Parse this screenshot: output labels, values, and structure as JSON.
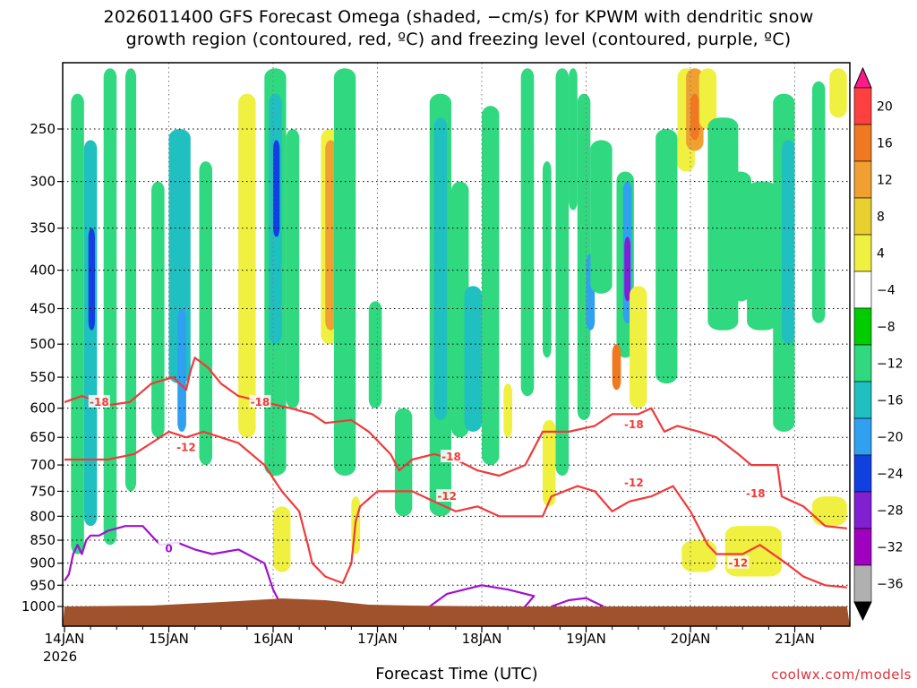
{
  "title": {
    "line1": "2026011400 GFS Forecast Omega (shaded, −cm/s) for KPWM with dendritic snow",
    "line2": "growth region (contoured, red, ºC) and freezing level (contoured, purple, ºC)"
  },
  "credit": "coolwx.com/models",
  "chart_data": {
    "type": "heatmap",
    "title": "2026011400 GFS Forecast Omega (shaded, −cm/s) for KPWM with dendritic snow growth region (contoured, red, ºC) and freezing level (contoured, purple, ºC)",
    "xlabel": "Forecast Time (UTC)",
    "ylabel": "",
    "x_ticks": [
      {
        "label": "14JAN",
        "hour": 0
      },
      {
        "label": "15JAN",
        "hour": 24
      },
      {
        "label": "16JAN",
        "hour": 48
      },
      {
        "label": "17JAN",
        "hour": 72
      },
      {
        "label": "18JAN",
        "hour": 96
      },
      {
        "label": "19JAN",
        "hour": 120
      },
      {
        "label": "20JAN",
        "hour": 144
      },
      {
        "label": "21JAN",
        "hour": 168
      }
    ],
    "x_year_label": "2026",
    "xlim_hours": [
      0,
      180
    ],
    "y_ticks": [
      250,
      300,
      350,
      400,
      450,
      500,
      550,
      600,
      650,
      700,
      750,
      800,
      850,
      900,
      950,
      1000
    ],
    "ylim": [
      200,
      1000
    ],
    "grid": true,
    "colorbar": {
      "levels": [
        20,
        16,
        12,
        8,
        4,
        -4,
        -8,
        -12,
        -16,
        -20,
        -24,
        -28,
        -32,
        -36
      ],
      "colors": [
        "#ff1a8c",
        "#ff4040",
        "#f07820",
        "#f0a030",
        "#e8d030",
        "#f0f040",
        "#ffffff",
        "#00cc00",
        "#30d880",
        "#20c0c0",
        "#30a0f0",
        "#1040e0",
        "#8020d0",
        "#a000c0",
        "#b0b0b0",
        "#000000"
      ]
    },
    "omega_regions": [
      {
        "x": [
          1.5,
          4.5
        ],
        "p": [
          220,
          880
        ],
        "v": -8
      },
      {
        "x": [
          4.5,
          7.5
        ],
        "p": [
          260,
          820
        ],
        "v": -12
      },
      {
        "x": [
          5.5,
          7
        ],
        "p": [
          350,
          480
        ],
        "v": -20
      },
      {
        "x": [
          9,
          12
        ],
        "p": [
          200,
          860
        ],
        "v": -8
      },
      {
        "x": [
          14,
          16.5
        ],
        "p": [
          200,
          750
        ],
        "v": -8
      },
      {
        "x": [
          20,
          23
        ],
        "p": [
          300,
          650
        ],
        "v": -8
      },
      {
        "x": [
          24,
          29
        ],
        "p": [
          250,
          560
        ],
        "v": -12
      },
      {
        "x": [
          26,
          28
        ],
        "p": [
          450,
          640
        ],
        "v": -16
      },
      {
        "x": [
          31,
          34
        ],
        "p": [
          280,
          700
        ],
        "v": -8
      },
      {
        "x": [
          40,
          44
        ],
        "p": [
          220,
          650
        ],
        "v": 4
      },
      {
        "x": [
          46,
          51
        ],
        "p": [
          200,
          720
        ],
        "v": -8
      },
      {
        "x": [
          47,
          50
        ],
        "p": [
          220,
          500
        ],
        "v": -12
      },
      {
        "x": [
          48,
          49.5
        ],
        "p": [
          260,
          360
        ],
        "v": -20
      },
      {
        "x": [
          51,
          54
        ],
        "p": [
          250,
          600
        ],
        "v": -8
      },
      {
        "x": [
          59,
          63
        ],
        "p": [
          250,
          500
        ],
        "v": 4
      },
      {
        "x": [
          60,
          62.5
        ],
        "p": [
          260,
          480
        ],
        "v": 8
      },
      {
        "x": [
          62,
          67
        ],
        "p": [
          200,
          720
        ],
        "v": -8
      },
      {
        "x": [
          48,
          52
        ],
        "p": [
          780,
          920
        ],
        "v": 4
      },
      {
        "x": [
          66,
          68
        ],
        "p": [
          760,
          880
        ],
        "v": 4
      },
      {
        "x": [
          70,
          73
        ],
        "p": [
          440,
          600
        ],
        "v": -8
      },
      {
        "x": [
          76,
          80
        ],
        "p": [
          600,
          800
        ],
        "v": -8
      },
      {
        "x": [
          84,
          89
        ],
        "p": [
          220,
          800
        ],
        "v": -8
      },
      {
        "x": [
          85,
          88
        ],
        "p": [
          240,
          620
        ],
        "v": -12
      },
      {
        "x": [
          89,
          93
        ],
        "p": [
          300,
          650
        ],
        "v": -8
      },
      {
        "x": [
          92,
          96
        ],
        "p": [
          420,
          640
        ],
        "v": -12
      },
      {
        "x": [
          96,
          100
        ],
        "p": [
          230,
          700
        ],
        "v": -8
      },
      {
        "x": [
          101,
          103
        ],
        "p": [
          560,
          650
        ],
        "v": 4
      },
      {
        "x": [
          105,
          108
        ],
        "p": [
          200,
          580
        ],
        "v": -8
      },
      {
        "x": [
          110,
          112
        ],
        "p": [
          280,
          520
        ],
        "v": -8
      },
      {
        "x": [
          113,
          116
        ],
        "p": [
          200,
          720
        ],
        "v": -8
      },
      {
        "x": [
          110,
          113
        ],
        "p": [
          620,
          780
        ],
        "v": 4
      },
      {
        "x": [
          116,
          118
        ],
        "p": [
          200,
          330
        ],
        "v": -8
      },
      {
        "x": [
          118,
          121
        ],
        "p": [
          220,
          620
        ],
        "v": -8
      },
      {
        "x": [
          120,
          122
        ],
        "p": [
          380,
          480
        ],
        "v": -16
      },
      {
        "x": [
          121,
          126
        ],
        "p": [
          260,
          430
        ],
        "v": -8
      },
      {
        "x": [
          127,
          131
        ],
        "p": [
          290,
          520
        ],
        "v": -8
      },
      {
        "x": [
          128.5,
          130.5
        ],
        "p": [
          300,
          470
        ],
        "v": -16
      },
      {
        "x": [
          128.8,
          130.2
        ],
        "p": [
          360,
          440
        ],
        "v": -24
      },
      {
        "x": [
          126,
          128
        ],
        "p": [
          500,
          570
        ],
        "v": 12
      },
      {
        "x": [
          130,
          134
        ],
        "p": [
          420,
          600
        ],
        "v": 4
      },
      {
        "x": [
          136,
          141
        ],
        "p": [
          250,
          560
        ],
        "v": -8
      },
      {
        "x": [
          141,
          145
        ],
        "p": [
          200,
          290
        ],
        "v": 4
      },
      {
        "x": [
          143,
          147
        ],
        "p": [
          200,
          270
        ],
        "v": 8
      },
      {
        "x": [
          144,
          146
        ],
        "p": [
          220,
          260
        ],
        "v": 12
      },
      {
        "x": [
          146,
          150
        ],
        "p": [
          200,
          250
        ],
        "v": 4
      },
      {
        "x": [
          148,
          155
        ],
        "p": [
          240,
          480
        ],
        "v": -8
      },
      {
        "x": [
          153,
          158
        ],
        "p": [
          290,
          440
        ],
        "v": -8
      },
      {
        "x": [
          157,
          164
        ],
        "p": [
          300,
          480
        ],
        "v": -8
      },
      {
        "x": [
          163,
          168
        ],
        "p": [
          220,
          640
        ],
        "v": -8
      },
      {
        "x": [
          165,
          168
        ],
        "p": [
          260,
          500
        ],
        "v": -12
      },
      {
        "x": [
          172,
          175
        ],
        "p": [
          210,
          470
        ],
        "v": -8
      },
      {
        "x": [
          176,
          180
        ],
        "p": [
          200,
          240
        ],
        "v": 4
      },
      {
        "x": [
          142,
          150
        ],
        "p": [
          850,
          920
        ],
        "v": 4
      },
      {
        "x": [
          152,
          165
        ],
        "p": [
          820,
          930
        ],
        "v": 4
      },
      {
        "x": [
          172,
          180
        ],
        "p": [
          760,
          820
        ],
        "v": 4
      }
    ],
    "contours": [
      {
        "label": "-18",
        "color": "#f03a3a",
        "label_at": [
          [
            8,
            590
          ],
          [
            45,
            590
          ],
          [
            89,
            685
          ],
          [
            131,
            628
          ],
          [
            159,
            755
          ]
        ],
        "points": [
          [
            0,
            590
          ],
          [
            4,
            580
          ],
          [
            10,
            595
          ],
          [
            15,
            590
          ],
          [
            20,
            560
          ],
          [
            25,
            550
          ],
          [
            28,
            570
          ],
          [
            29,
            540
          ],
          [
            30,
            520
          ],
          [
            33,
            535
          ],
          [
            36,
            560
          ],
          [
            40,
            580
          ],
          [
            46,
            590
          ],
          [
            52,
            600
          ],
          [
            57,
            610
          ],
          [
            60,
            625
          ],
          [
            66,
            620
          ],
          [
            70,
            640
          ],
          [
            75,
            680
          ],
          [
            77,
            710
          ],
          [
            80,
            690
          ],
          [
            85,
            680
          ],
          [
            90,
            690
          ],
          [
            95,
            710
          ],
          [
            100,
            720
          ],
          [
            106,
            700
          ],
          [
            110,
            640
          ],
          [
            116,
            640
          ],
          [
            122,
            630
          ],
          [
            126,
            610
          ],
          [
            132,
            610
          ],
          [
            135,
            600
          ],
          [
            138,
            640
          ],
          [
            141,
            630
          ],
          [
            146,
            640
          ],
          [
            150,
            650
          ],
          [
            155,
            680
          ],
          [
            158,
            700
          ],
          [
            160,
            700
          ],
          [
            164,
            700
          ],
          [
            165,
            760
          ],
          [
            170,
            780
          ],
          [
            175,
            820
          ],
          [
            180,
            825
          ]
        ]
      },
      {
        "label": "-12",
        "color": "#f03a3a",
        "label_at": [
          [
            28,
            668
          ],
          [
            88,
            760
          ],
          [
            131,
            734
          ],
          [
            155,
            900
          ]
        ],
        "points": [
          [
            0,
            690
          ],
          [
            4,
            690
          ],
          [
            10,
            690
          ],
          [
            16,
            680
          ],
          [
            20,
            660
          ],
          [
            24,
            640
          ],
          [
            28,
            650
          ],
          [
            32,
            640
          ],
          [
            40,
            660
          ],
          [
            46,
            700
          ],
          [
            50,
            750
          ],
          [
            54,
            790
          ],
          [
            56,
            860
          ],
          [
            57,
            900
          ],
          [
            60,
            930
          ],
          [
            64,
            945
          ],
          [
            66,
            900
          ],
          [
            67,
            810
          ],
          [
            68,
            780
          ],
          [
            72,
            750
          ],
          [
            80,
            750
          ],
          [
            85,
            770
          ],
          [
            90,
            790
          ],
          [
            95,
            780
          ],
          [
            100,
            800
          ],
          [
            106,
            800
          ],
          [
            110,
            800
          ],
          [
            112,
            760
          ],
          [
            118,
            740
          ],
          [
            122,
            750
          ],
          [
            126,
            790
          ],
          [
            130,
            770
          ],
          [
            135,
            760
          ],
          [
            140,
            740
          ],
          [
            144,
            790
          ],
          [
            148,
            860
          ],
          [
            150,
            880
          ],
          [
            156,
            880
          ],
          [
            160,
            860
          ],
          [
            166,
            900
          ],
          [
            170,
            930
          ],
          [
            175,
            950
          ],
          [
            180,
            955
          ]
        ]
      },
      {
        "label": "0",
        "color": "#a010d0",
        "label_at": [
          [
            24,
            868
          ]
        ],
        "points": [
          [
            0,
            940
          ],
          [
            1,
            925
          ],
          [
            2,
            880
          ],
          [
            3,
            860
          ],
          [
            4,
            880
          ],
          [
            5,
            850
          ],
          [
            6,
            840
          ],
          [
            8,
            840
          ],
          [
            10,
            830
          ],
          [
            14,
            820
          ],
          [
            18,
            820
          ],
          [
            22,
            860
          ],
          [
            26,
            855
          ],
          [
            30,
            870
          ],
          [
            34,
            880
          ],
          [
            40,
            870
          ],
          [
            46,
            900
          ],
          [
            48,
            960
          ],
          [
            50,
            1000
          ]
        ]
      },
      {
        "label": "",
        "color": "#a010d0",
        "label_at": [],
        "points": [
          [
            84,
            1000
          ],
          [
            88,
            970
          ],
          [
            92,
            960
          ],
          [
            96,
            950
          ],
          [
            102,
            960
          ],
          [
            108,
            975
          ],
          [
            106,
            1000
          ]
        ]
      },
      {
        "label": "",
        "color": "#a010d0",
        "label_at": [],
        "points": [
          [
            112,
            1000
          ],
          [
            116,
            985
          ],
          [
            120,
            980
          ],
          [
            124,
            1000
          ]
        ]
      }
    ],
    "terrain_color": "#a0522d"
  }
}
